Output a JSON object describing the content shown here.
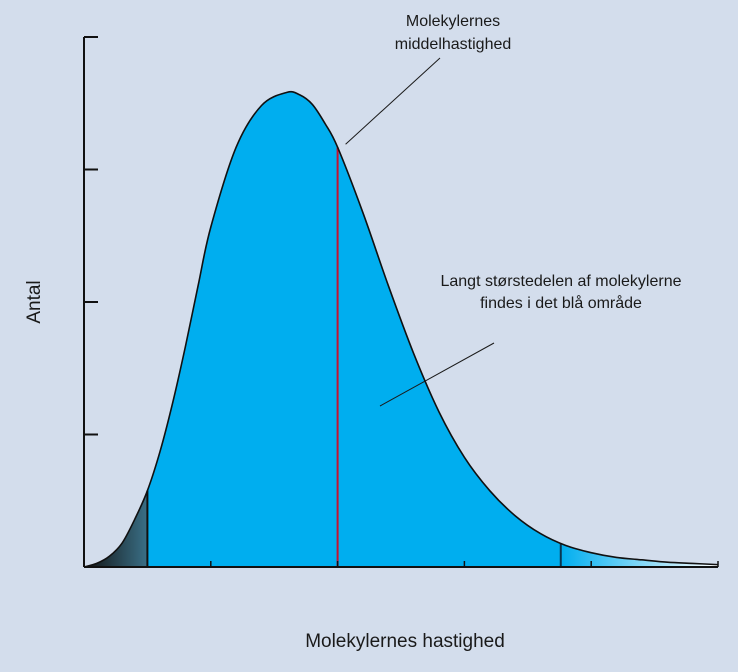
{
  "chart_data": {
    "type": "area",
    "title": "",
    "xlabel": "Molekylernes hastighed",
    "ylabel": "Antal",
    "xlim": [
      0,
      5
    ],
    "ylim": [
      0,
      4
    ],
    "grid": false,
    "x_ticks": [
      1,
      2,
      3,
      4,
      5
    ],
    "y_ticks": [
      1,
      2,
      3,
      4
    ],
    "y_tick_labels_shown": false,
    "x_tick_labels_shown": false,
    "curve": {
      "x": [
        0,
        0.1,
        0.2,
        0.3,
        0.4,
        0.5,
        0.6,
        0.7,
        0.8,
        0.9,
        1.0,
        1.2,
        1.4,
        1.6,
        1.7,
        1.8,
        1.9,
        2.0,
        2.2,
        2.4,
        2.6,
        2.8,
        3.0,
        3.2,
        3.4,
        3.6,
        3.8,
        4.0,
        4.2,
        4.4,
        4.6,
        4.8,
        5.0
      ],
      "y": [
        0,
        0.03,
        0.09,
        0.2,
        0.4,
        0.64,
        0.97,
        1.38,
        1.85,
        2.36,
        2.85,
        3.52,
        3.87,
        3.98,
        3.96,
        3.88,
        3.72,
        3.52,
        2.97,
        2.36,
        1.79,
        1.3,
        0.92,
        0.64,
        0.43,
        0.28,
        0.18,
        0.12,
        0.08,
        0.06,
        0.04,
        0.03,
        0.02
      ]
    },
    "regions": [
      {
        "from": 0,
        "to": 0.5,
        "color": "#111111",
        "fade_to": "#3a6f86"
      },
      {
        "from": 0.5,
        "to": 3.76,
        "color": "#00aeef"
      },
      {
        "from": 3.76,
        "to": 5,
        "color": "#00aeef",
        "fade_to": "#ffffff"
      }
    ],
    "boundary_lines": [
      {
        "x": 0.5,
        "color": "#111111"
      },
      {
        "x": 3.76,
        "color": "#0a3550"
      }
    ],
    "mean_line": {
      "x": 2.0,
      "color": "#c8102e"
    },
    "annotations": [
      {
        "lines": [
          "Molekylernes",
          "middelhastighed"
        ],
        "target": "mean-line-top"
      },
      {
        "lines": [
          "Langt størstedelen af molekylerne",
          "findes i det blå område"
        ],
        "target": "blue-area"
      }
    ]
  }
}
